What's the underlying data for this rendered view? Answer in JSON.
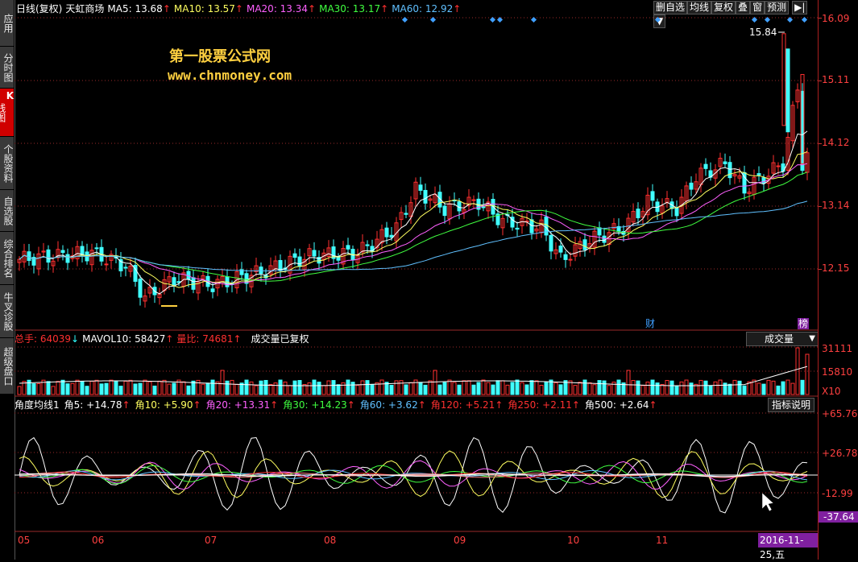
{
  "sidebar": {
    "tabs": [
      {
        "label": "应用",
        "active": false
      },
      {
        "label": "分时图",
        "active": false
      },
      {
        "label_k": "K",
        "label": "线图",
        "active": true
      },
      {
        "label": "个股资料",
        "active": false
      },
      {
        "label": "自选股",
        "active": false
      },
      {
        "label": "综合排名",
        "active": false
      },
      {
        "label": "牛叉诊股",
        "active": false
      },
      {
        "label": "超级盘口",
        "active": false
      }
    ]
  },
  "kline_header": {
    "period": "日线(复权)",
    "stock_name": "天虹商场",
    "ma5_label": "MA5: 13.68",
    "ma10_label": "MA10: 13.57",
    "ma20_label": "MA20: 13.34",
    "ma30_label": "MA30: 13.17",
    "ma60_label": "MA60: 12.92",
    "up_arrow": "↑"
  },
  "toolbar": {
    "del_fav": "删自选",
    "avg_line": "均线",
    "restore": "复权",
    "overlay": "叠",
    "window": "窗",
    "forecast": "预测",
    "nav_icon": "▶|",
    "more_icon": "▼"
  },
  "watermark": {
    "line1": "第一股票公式网",
    "line2": "www.chnmoney.com"
  },
  "price_scale": [
    "16.09",
    "15.11",
    "14.12",
    "13.14",
    "12.15"
  ],
  "max_price_label": "15.84",
  "markers": {
    "fin": "财",
    "list": "榜"
  },
  "volume_header": {
    "total": "总手: 64039",
    "total_arrow": "↓",
    "mavol": "MAVOL10: 58427",
    "mavol_arrow": "↑",
    "ratio": "量比: 74681",
    "ratio_arrow": "↑",
    "note": "成交量已复权",
    "selector": "成交量"
  },
  "volume_scale": [
    "31111",
    "15810",
    "X10"
  ],
  "indicator_header": {
    "name": "角度均线1",
    "items": [
      {
        "label": "角5: +14.78",
        "color": "#ffffff"
      },
      {
        "label": "角10: +5.90",
        "color": "#ffff60"
      },
      {
        "label": "角20: +13.31",
        "color": "#ff60ff"
      },
      {
        "label": "角30: +14.23",
        "color": "#40ff40"
      },
      {
        "label": "角60: +3.62",
        "color": "#60c0ff"
      },
      {
        "label": "角120: +5.21",
        "color": "#ff3030"
      },
      {
        "label": "角250: +2.11",
        "color": "#ff3030"
      },
      {
        "label": "角500: +2.64",
        "color": "#ffffff"
      }
    ],
    "arrow": "↑",
    "explain": "指标说明"
  },
  "indicator_scale": [
    "+65.76",
    "+26.78",
    "-12.99",
    "-37.64"
  ],
  "x_dates": [
    "05",
    "06",
    "07",
    "08",
    "09",
    "10",
    "11"
  ],
  "current_date": "2016-11-25,五",
  "colors": {
    "up": "#ff3030",
    "down": "#40ffff",
    "ma5": "#ffffff",
    "ma10": "#ffff60",
    "ma20": "#ff60ff",
    "ma30": "#40ff40",
    "ma60": "#60c0ff",
    "grid": "#9a2a2a"
  }
}
